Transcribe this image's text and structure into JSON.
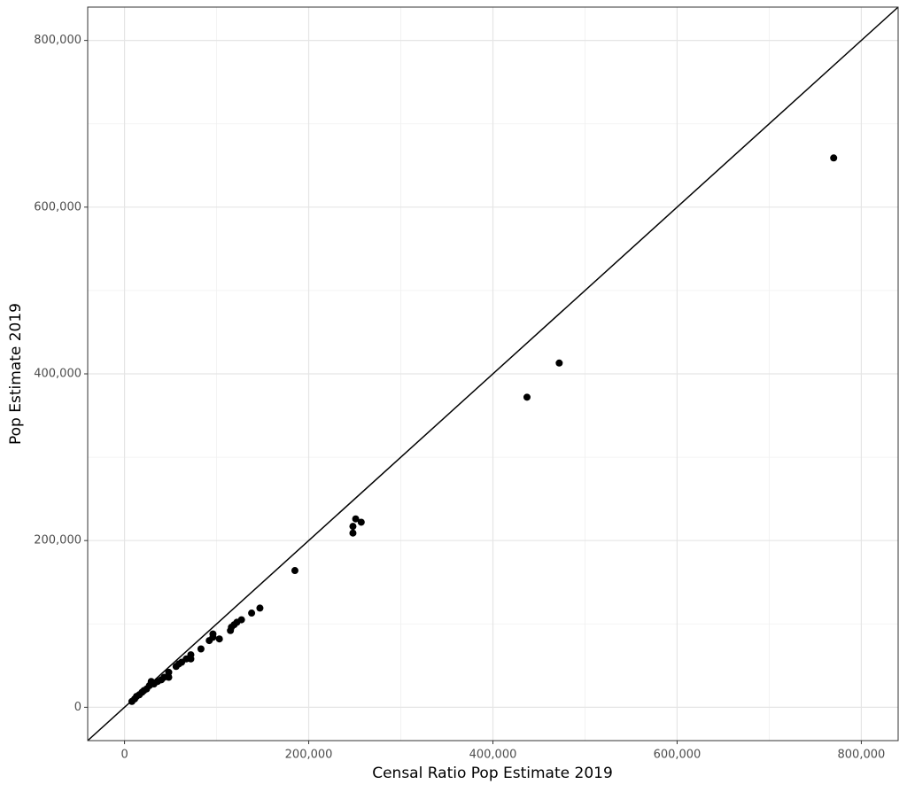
{
  "chart_data": {
    "type": "scatter",
    "x_label": "Censal Ratio Pop Estimate 2019",
    "y_label": "Pop Estimate 2019",
    "color": "#000000",
    "grid": true,
    "xlim": [
      -40000,
      840000
    ],
    "ylim": [
      -40000,
      840000
    ],
    "xticks": [
      0,
      {
        "value": 200000,
        "label": "200,000"
      },
      {
        "value": 400000,
        "label": "400,000"
      },
      {
        "value": 600000,
        "label": "600,000"
      },
      {
        "value": 800000,
        "label": "800,000"
      }
    ],
    "yticks": [
      0,
      {
        "value": 200000,
        "label": "200,000"
      },
      {
        "value": 400000,
        "label": "400,000"
      },
      {
        "value": 600000,
        "label": "600,000"
      },
      {
        "value": 800000,
        "label": "800,000"
      }
    ],
    "xminor": [
      100000,
      300000,
      500000,
      700000
    ],
    "yminor": [
      100000,
      300000,
      500000,
      700000
    ],
    "x": [
      770000,
      472000,
      437000,
      251000,
      257000,
      248000,
      248000,
      185000,
      147000,
      138000,
      127000,
      122000,
      119000,
      116000,
      115000,
      103000,
      96000,
      96000,
      92000,
      83000,
      72000,
      72000,
      67000,
      62000,
      59000,
      56000,
      48000,
      48000,
      43000,
      40000,
      36000,
      32000,
      29000,
      27000,
      24000,
      21000,
      19000,
      16000,
      13000,
      11000,
      8000
    ],
    "values": [
      659000,
      413000,
      372000,
      226000,
      222000,
      217000,
      209000,
      164000,
      119000,
      113000,
      105000,
      102000,
      99000,
      96000,
      92000,
      82000,
      88000,
      84000,
      80000,
      70000,
      63000,
      58000,
      58000,
      54000,
      52000,
      49000,
      42000,
      36000,
      36000,
      33000,
      31000,
      28000,
      31000,
      26000,
      22000,
      20000,
      18000,
      15000,
      13000,
      10000,
      7000
    ]
  }
}
